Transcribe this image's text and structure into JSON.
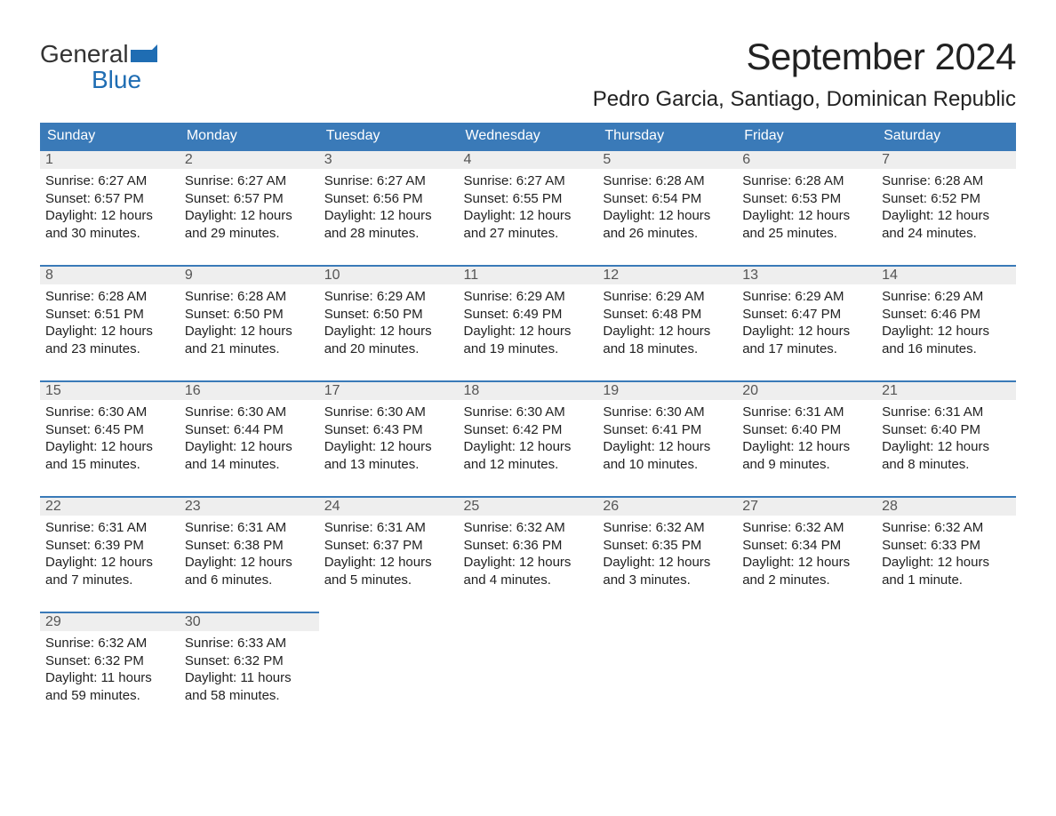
{
  "brand": {
    "word1": "General",
    "word2": "Blue"
  },
  "title": "September 2024",
  "location": "Pedro Garcia, Santiago, Dominican Republic",
  "colors": {
    "header_bg": "#3a7ab8",
    "header_text": "#ffffff",
    "daynum_bg": "#eeeeee",
    "daynum_border": "#3a7ab8",
    "text": "#222222",
    "logo_blue": "#1f6db3"
  },
  "weekdays": [
    "Sunday",
    "Monday",
    "Tuesday",
    "Wednesday",
    "Thursday",
    "Friday",
    "Saturday"
  ],
  "weeks": [
    [
      {
        "n": "1",
        "sr": "6:27 AM",
        "ss": "6:57 PM",
        "dl": "12 hours and 30 minutes."
      },
      {
        "n": "2",
        "sr": "6:27 AM",
        "ss": "6:57 PM",
        "dl": "12 hours and 29 minutes."
      },
      {
        "n": "3",
        "sr": "6:27 AM",
        "ss": "6:56 PM",
        "dl": "12 hours and 28 minutes."
      },
      {
        "n": "4",
        "sr": "6:27 AM",
        "ss": "6:55 PM",
        "dl": "12 hours and 27 minutes."
      },
      {
        "n": "5",
        "sr": "6:28 AM",
        "ss": "6:54 PM",
        "dl": "12 hours and 26 minutes."
      },
      {
        "n": "6",
        "sr": "6:28 AM",
        "ss": "6:53 PM",
        "dl": "12 hours and 25 minutes."
      },
      {
        "n": "7",
        "sr": "6:28 AM",
        "ss": "6:52 PM",
        "dl": "12 hours and 24 minutes."
      }
    ],
    [
      {
        "n": "8",
        "sr": "6:28 AM",
        "ss": "6:51 PM",
        "dl": "12 hours and 23 minutes."
      },
      {
        "n": "9",
        "sr": "6:28 AM",
        "ss": "6:50 PM",
        "dl": "12 hours and 21 minutes."
      },
      {
        "n": "10",
        "sr": "6:29 AM",
        "ss": "6:50 PM",
        "dl": "12 hours and 20 minutes."
      },
      {
        "n": "11",
        "sr": "6:29 AM",
        "ss": "6:49 PM",
        "dl": "12 hours and 19 minutes."
      },
      {
        "n": "12",
        "sr": "6:29 AM",
        "ss": "6:48 PM",
        "dl": "12 hours and 18 minutes."
      },
      {
        "n": "13",
        "sr": "6:29 AM",
        "ss": "6:47 PM",
        "dl": "12 hours and 17 minutes."
      },
      {
        "n": "14",
        "sr": "6:29 AM",
        "ss": "6:46 PM",
        "dl": "12 hours and 16 minutes."
      }
    ],
    [
      {
        "n": "15",
        "sr": "6:30 AM",
        "ss": "6:45 PM",
        "dl": "12 hours and 15 minutes."
      },
      {
        "n": "16",
        "sr": "6:30 AM",
        "ss": "6:44 PM",
        "dl": "12 hours and 14 minutes."
      },
      {
        "n": "17",
        "sr": "6:30 AM",
        "ss": "6:43 PM",
        "dl": "12 hours and 13 minutes."
      },
      {
        "n": "18",
        "sr": "6:30 AM",
        "ss": "6:42 PM",
        "dl": "12 hours and 12 minutes."
      },
      {
        "n": "19",
        "sr": "6:30 AM",
        "ss": "6:41 PM",
        "dl": "12 hours and 10 minutes."
      },
      {
        "n": "20",
        "sr": "6:31 AM",
        "ss": "6:40 PM",
        "dl": "12 hours and 9 minutes."
      },
      {
        "n": "21",
        "sr": "6:31 AM",
        "ss": "6:40 PM",
        "dl": "12 hours and 8 minutes."
      }
    ],
    [
      {
        "n": "22",
        "sr": "6:31 AM",
        "ss": "6:39 PM",
        "dl": "12 hours and 7 minutes."
      },
      {
        "n": "23",
        "sr": "6:31 AM",
        "ss": "6:38 PM",
        "dl": "12 hours and 6 minutes."
      },
      {
        "n": "24",
        "sr": "6:31 AM",
        "ss": "6:37 PM",
        "dl": "12 hours and 5 minutes."
      },
      {
        "n": "25",
        "sr": "6:32 AM",
        "ss": "6:36 PM",
        "dl": "12 hours and 4 minutes."
      },
      {
        "n": "26",
        "sr": "6:32 AM",
        "ss": "6:35 PM",
        "dl": "12 hours and 3 minutes."
      },
      {
        "n": "27",
        "sr": "6:32 AM",
        "ss": "6:34 PM",
        "dl": "12 hours and 2 minutes."
      },
      {
        "n": "28",
        "sr": "6:32 AM",
        "ss": "6:33 PM",
        "dl": "12 hours and 1 minute."
      }
    ],
    [
      {
        "n": "29",
        "sr": "6:32 AM",
        "ss": "6:32 PM",
        "dl": "11 hours and 59 minutes."
      },
      {
        "n": "30",
        "sr": "6:33 AM",
        "ss": "6:32 PM",
        "dl": "11 hours and 58 minutes."
      },
      null,
      null,
      null,
      null,
      null
    ]
  ],
  "labels": {
    "sunrise": "Sunrise: ",
    "sunset": "Sunset: ",
    "daylight": "Daylight: "
  }
}
